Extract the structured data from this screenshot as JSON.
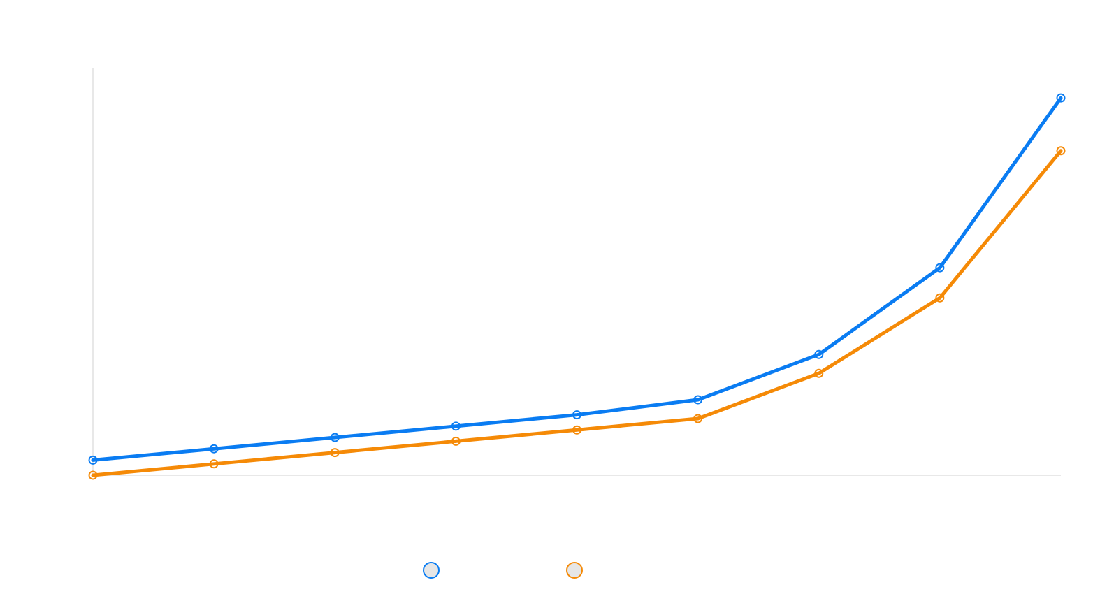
{
  "chart_data": {
    "type": "line",
    "title": "",
    "xlabel": "",
    "ylabel": "",
    "grid": false,
    "legend_position": "bottom-center",
    "x": [
      1,
      2,
      3,
      4,
      5,
      6,
      7,
      8,
      9
    ],
    "ylim": [
      0,
      108
    ],
    "series": [
      {
        "color": "#0a7cf2",
        "values": [
          4,
          7,
          10,
          13,
          16,
          20,
          32,
          55,
          100
        ]
      },
      {
        "color": "#f58a07",
        "values": [
          0,
          3,
          6,
          9,
          12,
          15,
          27,
          47,
          86
        ]
      }
    ]
  }
}
